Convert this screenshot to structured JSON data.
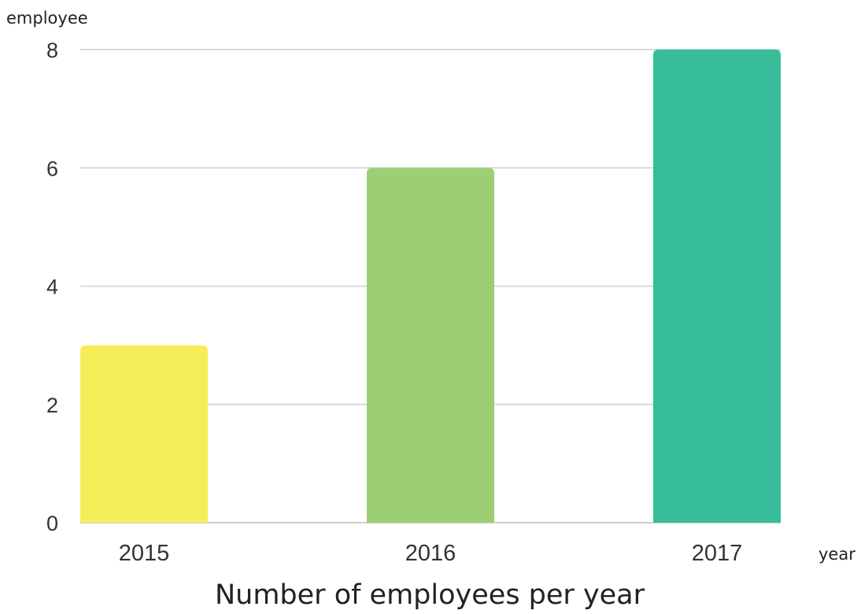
{
  "chart_data": {
    "type": "bar",
    "title": "Number of employees per year",
    "xlabel": "year",
    "ylabel": "employee",
    "categories": [
      "2015",
      "2016",
      "2017"
    ],
    "values": [
      3,
      6,
      8
    ],
    "ylim": [
      0,
      8
    ],
    "yticks": [
      0,
      2,
      4,
      6,
      8
    ],
    "grid": true,
    "legend": "none",
    "bar_colors": [
      "#f5ee5a",
      "#9ccf74",
      "#36bc98"
    ]
  }
}
